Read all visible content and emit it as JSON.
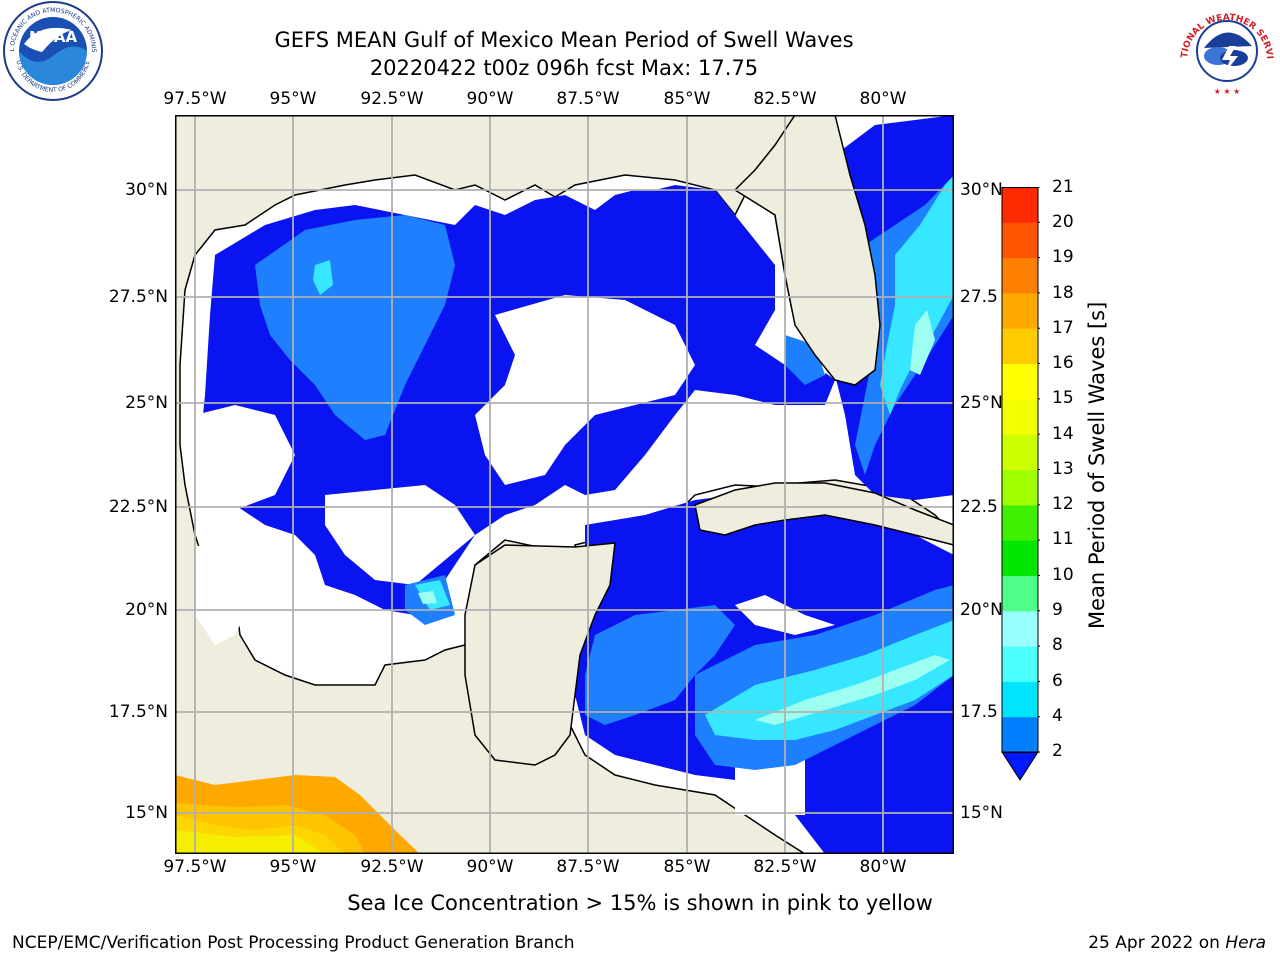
{
  "title": {
    "line1": "GEFS MEAN Gulf of Mexico Mean Period of Swell Waves",
    "line2": "20220422 t00z 096h fcst   Max: 17.75"
  },
  "axes": {
    "lon_labels": [
      "97.5°W",
      "95°W",
      "92.5°W",
      "90°W",
      "87.5°W",
      "85°W",
      "82.5°W",
      "80°W"
    ],
    "lat_labels": [
      "30°N",
      "27.5°N",
      "25°N",
      "22.5°N",
      "20°N",
      "17.5°N",
      "15°N"
    ],
    "lat_labels_right": [
      "30°N",
      "27.5",
      "25°N",
      "22.5",
      "20°N",
      "17.5",
      "15°N"
    ]
  },
  "colorbar": {
    "title": "Mean Period of Swell Waves [s]",
    "ticks": [
      "21",
      "20",
      "19",
      "18",
      "17",
      "16",
      "15",
      "14",
      "13",
      "12",
      "11",
      "10",
      "9",
      "8",
      "6",
      "4",
      "2"
    ],
    "levels": [
      2,
      4,
      6,
      8,
      9,
      10,
      11,
      12,
      13,
      14,
      15,
      16,
      17,
      18,
      19,
      20,
      21
    ],
    "colors": [
      "#0019ff",
      "#0080ff",
      "#00e5ff",
      "#4dffff",
      "#99ffff",
      "#4dff88",
      "#00e600",
      "#40f000",
      "#a0ff00",
      "#ccff00",
      "#f2ff00",
      "#ffff00",
      "#ffcc00",
      "#ffaa00",
      "#ff8000",
      "#ff5500",
      "#ff2a00",
      "#ff0000"
    ]
  },
  "map_colors": {
    "land": "#efedde",
    "water": "#ffffff",
    "coast": "#000000",
    "grid": "#b0b0b0",
    "band_2_4": "#0a14f0",
    "band_4_6": "#1e80ff",
    "band_6_8": "#37e6ff",
    "band_8_9": "#9cfff0",
    "ice_orange": "#ffa800",
    "ice_yellow": "#f5ee00"
  },
  "logos": {
    "noaa_text": "NOAA",
    "noaa_ring_top": "NATIONAL OCEANIC AND ATMOSPHERIC ADMINISTRATION",
    "noaa_ring_bottom": "U.S. DEPARTMENT OF COMMERCE",
    "nws_ring": "NATIONAL WEATHER SERVICE"
  },
  "notes": {
    "sea_ice": "Sea Ice Concentration > 15% is shown in pink to yellow"
  },
  "footer": {
    "left": "NCEP/EMC/Verification Post Processing Product Generation Branch",
    "date": "25 Apr 2022 on ",
    "host": "Hera"
  }
}
